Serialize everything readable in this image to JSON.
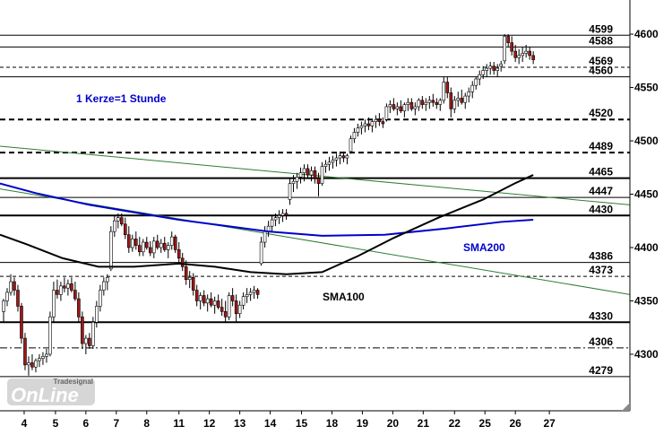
{
  "chart_data": {
    "type": "candlestick",
    "annotations": [
      "1 Kerze=1 Stunde",
      "SMA200",
      "SMA100"
    ],
    "watermark": [
      "Tradesignal",
      "OnLine"
    ],
    "up_color": "#ffffff",
    "down_color": "#a01818",
    "xlim": [
      0,
      176
    ],
    "ylim": [
      4247,
      4632
    ],
    "xticks": [
      {
        "value": 6.75,
        "label": "4"
      },
      {
        "value": 15.5,
        "label": "5"
      },
      {
        "value": 24,
        "label": "6"
      },
      {
        "value": 32.5,
        "label": "7"
      },
      {
        "value": 41,
        "label": "8"
      },
      {
        "value": 50,
        "label": "11"
      },
      {
        "value": 58.5,
        "label": "12"
      },
      {
        "value": 67,
        "label": "13"
      },
      {
        "value": 75.5,
        "label": "14"
      },
      {
        "value": 84.25,
        "label": "15"
      },
      {
        "value": 92.75,
        "label": "18"
      },
      {
        "value": 101.25,
        "label": "19"
      },
      {
        "value": 109.75,
        "label": "20"
      },
      {
        "value": 118.25,
        "label": "21"
      },
      {
        "value": 127,
        "label": "22"
      },
      {
        "value": 135.5,
        "label": "25"
      },
      {
        "value": 144,
        "label": "26"
      },
      {
        "value": 153.5,
        "label": "27"
      }
    ],
    "yticks": [
      4300,
      4350,
      4400,
      4450,
      4500,
      4550,
      4600
    ],
    "levels": [
      {
        "value": 4599,
        "style": "solid"
      },
      {
        "value": 4588,
        "style": "solid"
      },
      {
        "value": 4569,
        "style": "dashed"
      },
      {
        "value": 4560,
        "style": "solid"
      },
      {
        "value": 4520,
        "style": "bold-dashed"
      },
      {
        "value": 4489,
        "style": "bold-dashed"
      },
      {
        "value": 4465,
        "style": "bold"
      },
      {
        "value": 4447,
        "style": "solid"
      },
      {
        "value": 4430,
        "style": "bold"
      },
      {
        "value": 4386,
        "style": "solid"
      },
      {
        "value": 4373,
        "style": "dashed"
      },
      {
        "value": 4330,
        "style": "bold"
      },
      {
        "value": 4306,
        "style": "dashdot"
      },
      {
        "value": 4279,
        "style": "solid"
      }
    ],
    "lines": [
      {
        "name": "SMA200",
        "color": "#0000cc",
        "x": [
          0,
          10,
          25,
          50,
          75,
          90,
          107.5,
          125,
          140,
          149
        ],
        "values": [
          4460,
          4451,
          4440,
          4426,
          4415,
          4411,
          4412,
          4418,
          4424,
          4426
        ]
      },
      {
        "name": "SMA100",
        "color": "#000000",
        "x": [
          0,
          7.5,
          17.5,
          27.5,
          37.5,
          50,
          60,
          70,
          80,
          90,
          100,
          110,
          122.5,
          135,
          143.75,
          149
        ],
        "values": [
          4412,
          4403,
          4390,
          4382,
          4382,
          4385,
          4382,
          4377,
          4375,
          4377,
          4392,
          4409,
          4428,
          4445,
          4460,
          4468
        ]
      }
    ],
    "trendlines": [
      {
        "color": "#2e7d32",
        "x": [
          0,
          176
        ],
        "values": [
          4495,
          4440
        ]
      },
      {
        "color": "#2e7d32",
        "x": [
          0,
          176
        ],
        "values": [
          4455,
          4356
        ]
      }
    ],
    "x": [
      1,
      2,
      3,
      4,
      5,
      6,
      7,
      8,
      9,
      10,
      11,
      12,
      13,
      14,
      15,
      16,
      17,
      18,
      19,
      20,
      21,
      22,
      23,
      24,
      25,
      26,
      27,
      28,
      29,
      30,
      31,
      32,
      33,
      34,
      35,
      36,
      37,
      38,
      39,
      40,
      41,
      42,
      43,
      44,
      45,
      46,
      47,
      48,
      49,
      50,
      51,
      52,
      53,
      54,
      55,
      56,
      57,
      58,
      59,
      60,
      61,
      62,
      63,
      64,
      65,
      66,
      67,
      68,
      69,
      70,
      71,
      72,
      73,
      74,
      75,
      76,
      77,
      78,
      79,
      80,
      81,
      82,
      83,
      84,
      85,
      86,
      87,
      88,
      89,
      90,
      91,
      92,
      93,
      94,
      95,
      96,
      97,
      98,
      99,
      100,
      101,
      102,
      103,
      104,
      105,
      106,
      107,
      108,
      109,
      110,
      111,
      112,
      113,
      114,
      115,
      116,
      117,
      118,
      119,
      120,
      121,
      122,
      123,
      124,
      125,
      126,
      127,
      128,
      129,
      130,
      131,
      132,
      133,
      134,
      135,
      136,
      137,
      138,
      139,
      140,
      141,
      142,
      143,
      144,
      145,
      146,
      147,
      148,
      149
    ],
    "ohlc": [
      [
        4340,
        4352,
        4330,
        4350
      ],
      [
        4350,
        4362,
        4345,
        4358
      ],
      [
        4358,
        4375,
        4355,
        4368
      ],
      [
        4368,
        4372,
        4355,
        4360
      ],
      [
        4360,
        4365,
        4340,
        4345
      ],
      [
        4345,
        4348,
        4310,
        4315
      ],
      [
        4315,
        4320,
        4285,
        4290
      ],
      [
        4290,
        4298,
        4280,
        4292
      ],
      [
        4292,
        4300,
        4285,
        4288
      ],
      [
        4288,
        4296,
        4283,
        4294
      ],
      [
        4294,
        4300,
        4288,
        4296
      ],
      [
        4296,
        4302,
        4290,
        4298
      ],
      [
        4298,
        4305,
        4292,
        4300
      ],
      [
        4300,
        4340,
        4298,
        4335
      ],
      [
        4335,
        4368,
        4330,
        4360
      ],
      [
        4360,
        4370,
        4352,
        4356
      ],
      [
        4356,
        4368,
        4350,
        4364
      ],
      [
        4364,
        4372,
        4358,
        4362
      ],
      [
        4362,
        4370,
        4355,
        4366
      ],
      [
        4366,
        4372,
        4358,
        4360
      ],
      [
        4360,
        4368,
        4350,
        4352
      ],
      [
        4352,
        4358,
        4330,
        4335
      ],
      [
        4335,
        4340,
        4305,
        4310
      ],
      [
        4310,
        4318,
        4300,
        4315
      ],
      [
        4315,
        4320,
        4305,
        4308
      ],
      [
        4308,
        4335,
        4305,
        4330
      ],
      [
        4330,
        4350,
        4325,
        4345
      ],
      [
        4345,
        4365,
        4340,
        4360
      ],
      [
        4360,
        4372,
        4355,
        4368
      ],
      [
        4368,
        4375,
        4360,
        4372
      ],
      [
        4380,
        4420,
        4378,
        4415
      ],
      [
        4415,
        4430,
        4410,
        4425
      ],
      [
        4425,
        4432,
        4418,
        4428
      ],
      [
        4428,
        4432,
        4420,
        4422
      ],
      [
        4422,
        4428,
        4408,
        4412
      ],
      [
        4412,
        4420,
        4395,
        4400
      ],
      [
        4400,
        4412,
        4396,
        4408
      ],
      [
        4408,
        4415,
        4398,
        4402
      ],
      [
        4402,
        4410,
        4392,
        4396
      ],
      [
        4396,
        4408,
        4392,
        4405
      ],
      [
        4405,
        4410,
        4398,
        4400
      ],
      [
        4400,
        4406,
        4392,
        4395
      ],
      [
        4395,
        4410,
        4390,
        4406
      ],
      [
        4406,
        4412,
        4398,
        4400
      ],
      [
        4400,
        4408,
        4395,
        4404
      ],
      [
        4404,
        4410,
        4396,
        4398
      ],
      [
        4398,
        4405,
        4390,
        4402
      ],
      [
        4402,
        4415,
        4398,
        4410
      ],
      [
        4410,
        4412,
        4395,
        4398
      ],
      [
        4398,
        4405,
        4385,
        4390
      ],
      [
        4390,
        4395,
        4378,
        4382
      ],
      [
        4382,
        4388,
        4365,
        4370
      ],
      [
        4370,
        4378,
        4362,
        4372
      ],
      [
        4372,
        4376,
        4355,
        4360
      ],
      [
        4360,
        4365,
        4345,
        4350
      ],
      [
        4350,
        4358,
        4342,
        4355
      ],
      [
        4355,
        4360,
        4345,
        4348
      ],
      [
        4348,
        4356,
        4340,
        4352
      ],
      [
        4352,
        4358,
        4344,
        4346
      ],
      [
        4346,
        4354,
        4338,
        4350
      ],
      [
        4350,
        4356,
        4342,
        4344
      ],
      [
        4344,
        4352,
        4336,
        4340
      ],
      [
        4340,
        4350,
        4330,
        4335
      ],
      [
        4335,
        4358,
        4332,
        4355
      ],
      [
        4355,
        4362,
        4345,
        4350
      ],
      [
        4350,
        4356,
        4330,
        4338
      ],
      [
        4338,
        4350,
        4334,
        4346
      ],
      [
        4346,
        4358,
        4342,
        4354
      ],
      [
        4354,
        4362,
        4348,
        4356
      ],
      [
        4356,
        4362,
        4350,
        4358
      ],
      [
        4358,
        4364,
        4352,
        4360
      ],
      [
        4360,
        4362,
        4352,
        4356
      ],
      [
        4385,
        4410,
        4383,
        4405
      ],
      [
        4405,
        4420,
        4400,
        4415
      ],
      [
        4415,
        4425,
        4410,
        4420
      ],
      [
        4420,
        4430,
        4415,
        4426
      ],
      [
        4426,
        4432,
        4420,
        4428
      ],
      [
        4428,
        4435,
        4422,
        4430
      ],
      [
        4430,
        4436,
        4424,
        4432
      ],
      [
        4432,
        4436,
        4426,
        4430
      ],
      [
        4445,
        4465,
        4440,
        4460
      ],
      [
        4460,
        4468,
        4452,
        4462
      ],
      [
        4462,
        4470,
        4455,
        4466
      ],
      [
        4466,
        4475,
        4460,
        4470
      ],
      [
        4470,
        4478,
        4462,
        4474
      ],
      [
        4474,
        4478,
        4465,
        4468
      ],
      [
        4468,
        4476,
        4462,
        4472
      ],
      [
        4472,
        4476,
        4460,
        4465
      ],
      [
        4465,
        4470,
        4448,
        4460
      ],
      [
        4460,
        4480,
        4458,
        4476
      ],
      [
        4476,
        4482,
        4470,
        4478
      ],
      [
        4478,
        4485,
        4472,
        4480
      ],
      [
        4480,
        4486,
        4474,
        4482
      ],
      [
        4482,
        4488,
        4476,
        4484
      ],
      [
        4484,
        4490,
        4478,
        4486
      ],
      [
        4486,
        4490,
        4480,
        4484
      ],
      [
        4484,
        4488,
        4478,
        4486
      ],
      [
        4490,
        4505,
        4488,
        4502
      ],
      [
        4502,
        4512,
        4498,
        4508
      ],
      [
        4508,
        4516,
        4504,
        4512
      ],
      [
        4512,
        4518,
        4506,
        4514
      ],
      [
        4514,
        4520,
        4508,
        4516
      ],
      [
        4516,
        4522,
        4510,
        4514
      ],
      [
        4514,
        4520,
        4508,
        4518
      ],
      [
        4518,
        4524,
        4512,
        4520
      ],
      [
        4520,
        4526,
        4514,
        4518
      ],
      [
        4518,
        4522,
        4512,
        4516
      ],
      [
        4520,
        4535,
        4518,
        4532
      ],
      [
        4532,
        4538,
        4526,
        4534
      ],
      [
        4534,
        4540,
        4528,
        4530
      ],
      [
        4530,
        4536,
        4524,
        4532
      ],
      [
        4532,
        4538,
        4526,
        4528
      ],
      [
        4528,
        4536,
        4522,
        4534
      ],
      [
        4534,
        4540,
        4528,
        4536
      ],
      [
        4536,
        4540,
        4528,
        4530
      ],
      [
        4530,
        4536,
        4524,
        4532
      ],
      [
        4532,
        4540,
        4528,
        4538
      ],
      [
        4538,
        4542,
        4530,
        4534
      ],
      [
        4534,
        4540,
        4528,
        4536
      ],
      [
        4536,
        4542,
        4530,
        4538
      ],
      [
        4538,
        4544,
        4532,
        4536
      ],
      [
        4536,
        4540,
        4530,
        4534
      ],
      [
        4534,
        4540,
        4528,
        4538
      ],
      [
        4538,
        4560,
        4535,
        4555
      ],
      [
        4555,
        4560,
        4540,
        4545
      ],
      [
        4545,
        4550,
        4522,
        4530
      ],
      [
        4530,
        4542,
        4526,
        4538
      ],
      [
        4538,
        4546,
        4532,
        4540
      ],
      [
        4540,
        4548,
        4534,
        4536
      ],
      [
        4536,
        4545,
        4530,
        4542
      ],
      [
        4542,
        4550,
        4536,
        4546
      ],
      [
        4546,
        4556,
        4540,
        4552
      ],
      [
        4552,
        4560,
        4548,
        4558
      ],
      [
        4558,
        4566,
        4552,
        4562
      ],
      [
        4562,
        4570,
        4558,
        4566
      ],
      [
        4566,
        4572,
        4560,
        4568
      ],
      [
        4568,
        4574,
        4562,
        4570
      ],
      [
        4570,
        4574,
        4562,
        4566
      ],
      [
        4566,
        4572,
        4560,
        4568
      ],
      [
        4570,
        4575,
        4565,
        4572
      ],
      [
        4575,
        4600,
        4572,
        4598
      ],
      [
        4598,
        4600,
        4588,
        4592
      ],
      [
        4592,
        4598,
        4580,
        4584
      ],
      [
        4584,
        4590,
        4574,
        4578
      ],
      [
        4578,
        4586,
        4572,
        4580
      ],
      [
        4580,
        4588,
        4574,
        4582
      ],
      [
        4582,
        4590,
        4578,
        4584
      ],
      [
        4584,
        4588,
        4576,
        4580
      ],
      [
        4580,
        4584,
        4572,
        4576
      ]
    ]
  }
}
